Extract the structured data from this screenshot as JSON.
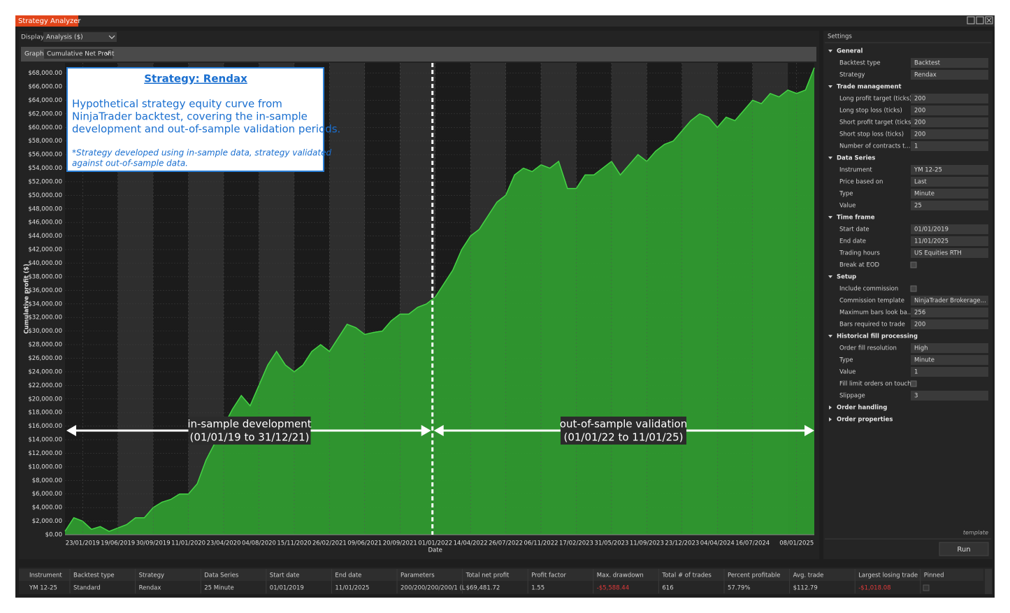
{
  "window": {
    "title": "Strategy Analyzer"
  },
  "toolbar": {
    "display_label": "Display",
    "display_value": "Analysis ($)",
    "graph_label": "Graph",
    "graph_value": "Cumulative Net Profit"
  },
  "chart_data": {
    "type": "area",
    "x_label": "Date",
    "y_label": "Cumulative profit ($)",
    "color": "#2f9a2f",
    "line_color": "#45d445",
    "ylim": [
      0,
      69500
    ],
    "yticks": [
      {
        "value": 0,
        "label": "$0.00"
      },
      {
        "value": 2000,
        "label": "$2,000.00"
      },
      {
        "value": 4000,
        "label": "$4,000.00"
      },
      {
        "value": 6000,
        "label": "$6,000.00"
      },
      {
        "value": 8000,
        "label": "$8,000.00"
      },
      {
        "value": 10000,
        "label": "$10,000.00"
      },
      {
        "value": 12000,
        "label": "$12,000.00"
      },
      {
        "value": 14000,
        "label": "$14,000.00"
      },
      {
        "value": 16000,
        "label": "$16,000.00"
      },
      {
        "value": 18000,
        "label": "$18,000.00"
      },
      {
        "value": 20000,
        "label": "$20,000.00"
      },
      {
        "value": 22000,
        "label": "$22,000.00"
      },
      {
        "value": 24000,
        "label": "$24,000.00"
      },
      {
        "value": 26000,
        "label": "$26,000.00"
      },
      {
        "value": 28000,
        "label": "$28,000.00"
      },
      {
        "value": 30000,
        "label": "$30,000.00"
      },
      {
        "value": 32000,
        "label": "$32,000.00"
      },
      {
        "value": 34000,
        "label": "$34,000.00"
      },
      {
        "value": 36000,
        "label": "$36,000.00"
      },
      {
        "value": 38000,
        "label": "$38,000.00"
      },
      {
        "value": 40000,
        "label": "$40,000.00"
      },
      {
        "value": 42000,
        "label": "$42,000.00"
      },
      {
        "value": 44000,
        "label": "$44,000.00"
      },
      {
        "value": 46000,
        "label": "$46,000.00"
      },
      {
        "value": 48000,
        "label": "$48,000.00"
      },
      {
        "value": 50000,
        "label": "$50,000.00"
      },
      {
        "value": 52000,
        "label": "$52,000.00"
      },
      {
        "value": 54000,
        "label": "$54,000.00"
      },
      {
        "value": 56000,
        "label": "$56,000.00"
      },
      {
        "value": 58000,
        "label": "$58,000.00"
      },
      {
        "value": 60000,
        "label": "$60,000.00"
      },
      {
        "value": 62000,
        "label": "$62,000.00"
      },
      {
        "value": 64000,
        "label": "$64,000.00"
      },
      {
        "value": 66000,
        "label": "$66,000.00"
      },
      {
        "value": 68000,
        "label": "$68,000.00"
      }
    ],
    "categories": [
      null,
      null,
      "23/01/2019",
      null,
      null,
      null,
      "19/06/2019",
      null,
      null,
      null,
      "30/09/2019",
      null,
      null,
      null,
      "11/01/2020",
      null,
      null,
      null,
      "23/04/2020",
      null,
      null,
      null,
      "04/08/2020",
      null,
      null,
      null,
      "15/11/2020",
      null,
      null,
      null,
      "26/02/2021",
      null,
      null,
      null,
      "09/06/2021",
      null,
      null,
      null,
      "20/09/2021",
      null,
      null,
      null,
      "01/01/2022",
      null,
      null,
      null,
      "14/04/2022",
      null,
      null,
      null,
      "26/07/2022",
      null,
      null,
      null,
      "06/11/2022",
      null,
      null,
      null,
      "17/02/2023",
      null,
      null,
      null,
      "31/05/2023",
      null,
      null,
      null,
      "11/09/2023",
      null,
      null,
      null,
      "23/12/2023",
      null,
      null,
      null,
      "04/04/2024",
      null,
      null,
      null,
      "16/07/2024",
      null,
      null,
      null,
      null,
      "08/01/2025",
      null,
      null
    ],
    "values": [
      500,
      2500,
      2000,
      800,
      1200,
      500,
      1000,
      1500,
      2500,
      2500,
      4000,
      4800,
      5200,
      6000,
      6000,
      7500,
      11000,
      13500,
      16000,
      18500,
      20500,
      19000,
      22000,
      25000,
      27000,
      25000,
      24000,
      25000,
      27000,
      28000,
      27000,
      29000,
      31000,
      30500,
      29500,
      29800,
      30000,
      31500,
      32500,
      32500,
      33500,
      34000,
      35000,
      37000,
      39000,
      42000,
      44000,
      45000,
      47000,
      49000,
      50000,
      53000,
      54000,
      53500,
      54500,
      54000,
      55000,
      51000,
      51000,
      53000,
      53000,
      54000,
      55000,
      53000,
      54500,
      56000,
      55000,
      56500,
      57500,
      58000,
      59500,
      61000,
      62000,
      61500,
      60000,
      61500,
      61000,
      62500,
      64000,
      63500,
      65000,
      64500,
      65500,
      65000,
      65500,
      68800
    ],
    "annotation_box": {
      "title": "Strategy: Rendax",
      "body": [
        "Hypothetical strategy equity curve from",
        "NinjaTrader backtest, covering the in-sample",
        "development and out-of-sample validation periods."
      ],
      "note": [
        "*Strategy developed using in-sample data, strategy validated",
        "against out-of-sample data."
      ]
    },
    "periods": [
      {
        "label": [
          "in-sample development",
          "(01/01/19 to 31/12/21)"
        ]
      },
      {
        "label": [
          "out-of-sample validation",
          "(01/01/22 to 11/01/25)"
        ]
      }
    ]
  },
  "settings": {
    "title": "Settings",
    "sections": [
      {
        "title": "General",
        "rows": [
          {
            "label": "Backtest type",
            "value": "Backtest"
          },
          {
            "label": "Strategy",
            "value": "Rendax"
          }
        ]
      },
      {
        "title": "Trade management",
        "rows": [
          {
            "label": "Long profit target (ticks)",
            "value": "200"
          },
          {
            "label": "Long stop loss (ticks)",
            "value": "200"
          },
          {
            "label": "Short profit target (ticks)",
            "value": "200"
          },
          {
            "label": "Short stop loss (ticks)",
            "value": "200"
          },
          {
            "label": "Number of contracts t...",
            "value": "1"
          }
        ]
      },
      {
        "title": "Data Series",
        "rows": [
          {
            "label": "Instrument",
            "value": "YM 12-25"
          },
          {
            "label": "Price based on",
            "value": "Last"
          },
          {
            "label": "Type",
            "value": "Minute"
          },
          {
            "label": "Value",
            "value": "25"
          }
        ]
      },
      {
        "title": "Time frame",
        "rows": [
          {
            "label": "Start date",
            "value": "01/01/2019"
          },
          {
            "label": "End date",
            "value": "11/01/2025"
          },
          {
            "label": "Trading hours",
            "value": "US Equities RTH"
          },
          {
            "label": "Break at EOD"
          }
        ]
      },
      {
        "title": "Setup",
        "rows": [
          {
            "label": "Include commission"
          },
          {
            "label": "Commission template",
            "value": "NinjaTrader Brokerage..."
          },
          {
            "label": "Maximum bars look ba...",
            "value": "256"
          },
          {
            "label": "Bars required to trade",
            "value": "200"
          }
        ]
      },
      {
        "title": "Historical fill processing",
        "rows": [
          {
            "label": "Order fill resolution",
            "value": "High"
          },
          {
            "label": "Type",
            "value": "Minute"
          },
          {
            "label": "Value",
            "value": "1"
          },
          {
            "label": "Fill limit orders on touch"
          },
          {
            "label": "Slippage",
            "value": "3"
          }
        ]
      },
      {
        "title": "Order handling"
      },
      {
        "title": "Order properties"
      }
    ],
    "template": "template",
    "run": "Run"
  },
  "results": {
    "headers": [
      "Instrument",
      "Backtest type",
      "Strategy",
      "Data Series",
      "Start date",
      "End date",
      "Parameters",
      "Total net profit",
      "Profit factor",
      "Max. drawdown",
      "Total # of trades",
      "Percent profitable",
      "Avg. trade",
      "Largest losing trade",
      "Pinned"
    ],
    "rows": [
      [
        "YM 12-25",
        "Standard",
        "Rendax",
        "25 Minute",
        "01/01/2019",
        "11/01/2025",
        "200/200/200/200/1 (L",
        "$69,481.72",
        "1.55",
        "-$5,588.44",
        "616",
        "57.79%",
        "$112.79",
        "-$1,018.08"
      ]
    ]
  }
}
